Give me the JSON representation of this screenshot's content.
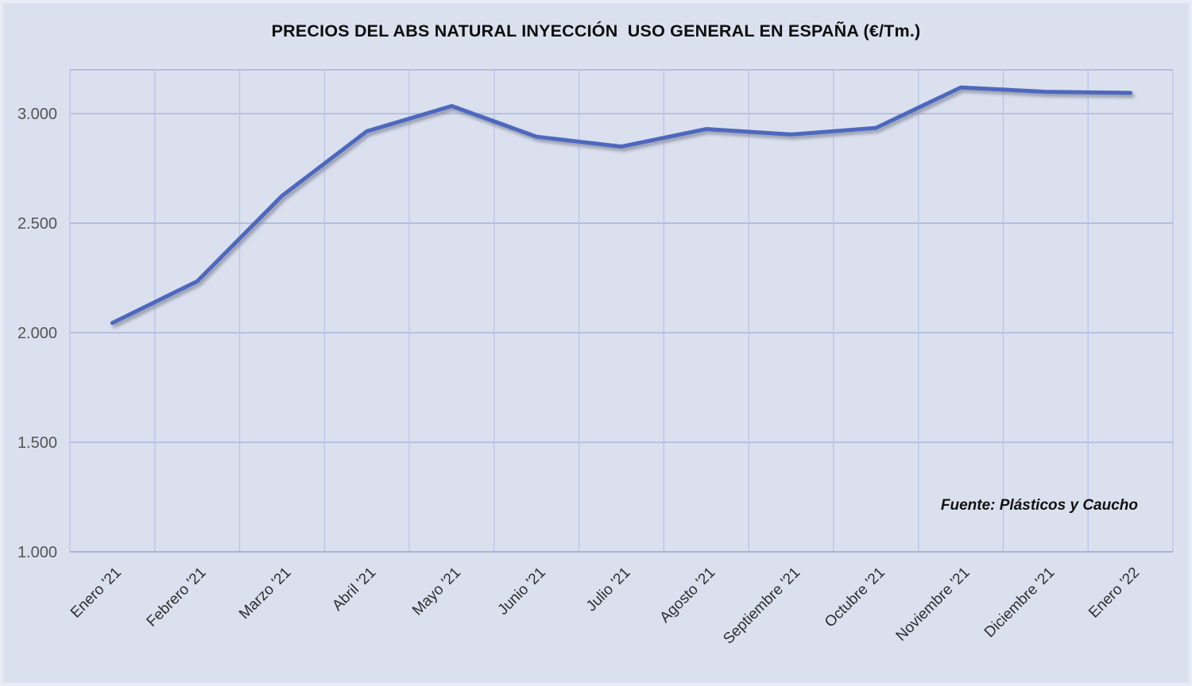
{
  "title": "PRECIOS DEL ABS NATURAL INYECCIÓN  USO GENERAL EN ESPAÑA (€/Tm.)",
  "source_note": "Fuente: Plásticos y Caucho",
  "chart_data": {
    "type": "line",
    "title": "PRECIOS DEL ABS NATURAL INYECCIÓN USO GENERAL EN ESPAÑA (€/Tm.)",
    "categories": [
      "Enero '21",
      "Febrero '21",
      "Marzo '21",
      "Abril '21",
      "Mayo '21",
      "Junio '21",
      "Julio '21",
      "Agosto '21",
      "Septiembre '21",
      "Octubre '21",
      "Noviembre '21",
      "Diciembre '21",
      "Enero '22"
    ],
    "values": [
      2045,
      2235,
      2625,
      2920,
      3035,
      2895,
      2850,
      2930,
      2905,
      2935,
      3120,
      3100,
      3095
    ],
    "xlabel": "",
    "ylabel": "",
    "ylim": [
      1000,
      3200
    ],
    "yticks": [
      1000,
      1500,
      2000,
      2500,
      3000
    ],
    "ytick_labels": [
      "1.000",
      "1.500",
      "2.000",
      "2.500",
      "3.000"
    ],
    "grid": true,
    "legend": false,
    "colors": {
      "line": "#4d68be",
      "line_shadow": "#7d8294",
      "background": "#dbe0ef",
      "gridline_h": "#a6b4dc",
      "gridline_v": "#bac5e7",
      "axis_line": "#9cadd5",
      "ytick_text": "#545454",
      "xtick_text": "#2e2e2e",
      "title_text": "#0d0d0d"
    }
  }
}
